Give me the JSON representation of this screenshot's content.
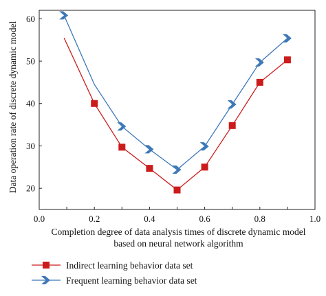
{
  "chart_data": {
    "type": "line",
    "title": "",
    "xlabel_line1": "Completion degree of data analysis times of discrete dynamic model",
    "xlabel_line2": "based on neural network algorithm",
    "ylabel": "Data operation rate of discrete dynamic model",
    "xlim": [
      0.0,
      1.0
    ],
    "ylim": [
      15,
      62
    ],
    "xticks": [
      "0.0",
      "0.2",
      "0.4",
      "0.6",
      "0.8",
      "1.0"
    ],
    "xtick_values": [
      0.0,
      0.1,
      0.2,
      0.3,
      0.4,
      0.5,
      0.6,
      0.7,
      0.8,
      0.9,
      1.0
    ],
    "yticks": [
      "20",
      "30",
      "40",
      "50",
      "60"
    ],
    "ytick_values": [
      20,
      30,
      40,
      50,
      60
    ],
    "grid": false,
    "legend_position": "bottom",
    "series": [
      {
        "name": "Indirect learning behavior data set",
        "color": "#cc1b1b",
        "marker": "square",
        "line_x": [
          0.09,
          0.2,
          0.3,
          0.4,
          0.5,
          0.6,
          0.7,
          0.8,
          0.9
        ],
        "line_y": [
          55.5,
          40.0,
          29.7,
          24.7,
          19.6,
          25.0,
          34.8,
          45.0,
          50.3
        ],
        "marker_x": [
          0.2,
          0.3,
          0.4,
          0.5,
          0.6,
          0.7,
          0.8,
          0.9
        ],
        "marker_y": [
          40.0,
          29.7,
          24.7,
          19.6,
          25.0,
          34.8,
          45.0,
          50.3
        ]
      },
      {
        "name": "Frequent learning behavior data set",
        "color": "#3d78b8",
        "marker": "chevron",
        "line_x": [
          0.09,
          0.2,
          0.3,
          0.4,
          0.5,
          0.6,
          0.7,
          0.8,
          0.9
        ],
        "line_y": [
          60.8,
          44.5,
          34.6,
          29.2,
          24.4,
          29.9,
          39.8,
          49.7,
          55.4
        ],
        "marker_x": [
          0.09,
          0.3,
          0.4,
          0.5,
          0.6,
          0.7,
          0.8,
          0.9
        ],
        "marker_y": [
          60.8,
          34.6,
          29.2,
          24.4,
          29.9,
          39.8,
          49.7,
          55.4
        ]
      }
    ]
  }
}
